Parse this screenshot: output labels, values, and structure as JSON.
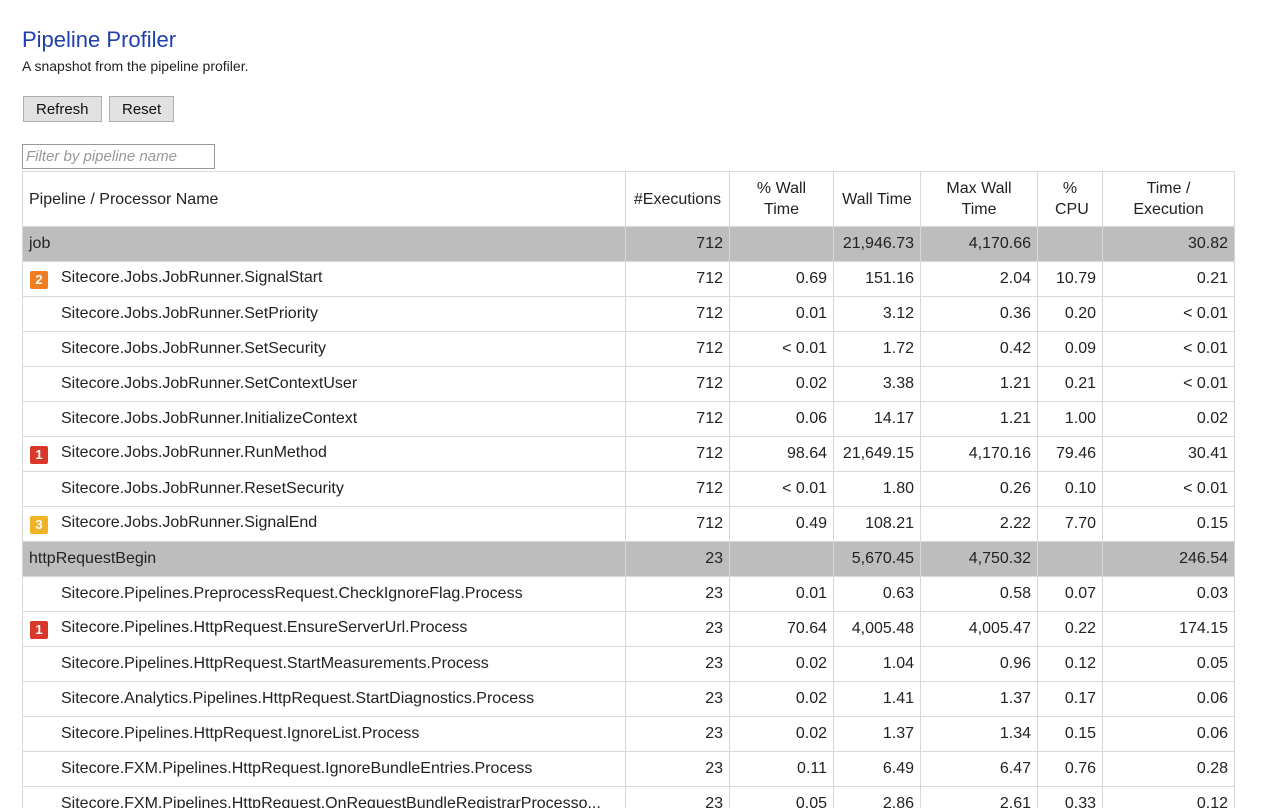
{
  "header": {
    "title": "Pipeline Profiler",
    "subtitle": "A snapshot from the pipeline profiler."
  },
  "toolbar": {
    "buttons": [
      "Refresh",
      "Reset"
    ]
  },
  "filter": {
    "placeholder": "Filter by pipeline name"
  },
  "table": {
    "columns": [
      "Pipeline / Processor Name",
      "#Executions",
      "% Wall Time",
      "Wall Time",
      "Max Wall Time",
      "% CPU",
      "Time / Execution"
    ],
    "rows": [
      {
        "group": true,
        "name": "job",
        "executions": "712",
        "wall_time": "21,946.73",
        "max_wall": "4,170.66",
        "time_per_exec": "30.82"
      },
      {
        "badge": "2",
        "name": "Sitecore.Jobs.JobRunner.SignalStart",
        "executions": "712",
        "pct_wall": "0.69",
        "wall_time": "151.16",
        "max_wall": "2.04",
        "pct_cpu": "10.79",
        "time_per_exec": "0.21"
      },
      {
        "name": "Sitecore.Jobs.JobRunner.SetPriority",
        "executions": "712",
        "pct_wall": "0.01",
        "wall_time": "3.12",
        "max_wall": "0.36",
        "pct_cpu": "0.20",
        "time_per_exec": "< 0.01"
      },
      {
        "name": "Sitecore.Jobs.JobRunner.SetSecurity",
        "executions": "712",
        "pct_wall": "< 0.01",
        "wall_time": "1.72",
        "max_wall": "0.42",
        "pct_cpu": "0.09",
        "time_per_exec": "< 0.01"
      },
      {
        "name": "Sitecore.Jobs.JobRunner.SetContextUser",
        "executions": "712",
        "pct_wall": "0.02",
        "wall_time": "3.38",
        "max_wall": "1.21",
        "pct_cpu": "0.21",
        "time_per_exec": "< 0.01"
      },
      {
        "name": "Sitecore.Jobs.JobRunner.InitializeContext",
        "executions": "712",
        "pct_wall": "0.06",
        "wall_time": "14.17",
        "max_wall": "1.21",
        "pct_cpu": "1.00",
        "time_per_exec": "0.02"
      },
      {
        "badge": "1",
        "name": "Sitecore.Jobs.JobRunner.RunMethod",
        "executions": "712",
        "pct_wall": "98.64",
        "wall_time": "21,649.15",
        "max_wall": "4,170.16",
        "pct_cpu": "79.46",
        "time_per_exec": "30.41"
      },
      {
        "name": "Sitecore.Jobs.JobRunner.ResetSecurity",
        "executions": "712",
        "pct_wall": "< 0.01",
        "wall_time": "1.80",
        "max_wall": "0.26",
        "pct_cpu": "0.10",
        "time_per_exec": "< 0.01"
      },
      {
        "badge": "3",
        "name": "Sitecore.Jobs.JobRunner.SignalEnd",
        "executions": "712",
        "pct_wall": "0.49",
        "wall_time": "108.21",
        "max_wall": "2.22",
        "pct_cpu": "7.70",
        "time_per_exec": "0.15"
      },
      {
        "group": true,
        "name": "httpRequestBegin",
        "executions": "23",
        "wall_time": "5,670.45",
        "max_wall": "4,750.32",
        "time_per_exec": "246.54"
      },
      {
        "name": "Sitecore.Pipelines.PreprocessRequest.CheckIgnoreFlag.Process",
        "executions": "23",
        "pct_wall": "0.01",
        "wall_time": "0.63",
        "max_wall": "0.58",
        "pct_cpu": "0.07",
        "time_per_exec": "0.03"
      },
      {
        "badge": "1",
        "name": "Sitecore.Pipelines.HttpRequest.EnsureServerUrl.Process",
        "executions": "23",
        "pct_wall": "70.64",
        "wall_time": "4,005.48",
        "max_wall": "4,005.47",
        "pct_cpu": "0.22",
        "time_per_exec": "174.15"
      },
      {
        "name": "Sitecore.Pipelines.HttpRequest.StartMeasurements.Process",
        "executions": "23",
        "pct_wall": "0.02",
        "wall_time": "1.04",
        "max_wall": "0.96",
        "pct_cpu": "0.12",
        "time_per_exec": "0.05"
      },
      {
        "name": "Sitecore.Analytics.Pipelines.HttpRequest.StartDiagnostics.Process",
        "executions": "23",
        "pct_wall": "0.02",
        "wall_time": "1.41",
        "max_wall": "1.37",
        "pct_cpu": "0.17",
        "time_per_exec": "0.06"
      },
      {
        "name": "Sitecore.Pipelines.HttpRequest.IgnoreList.Process",
        "executions": "23",
        "pct_wall": "0.02",
        "wall_time": "1.37",
        "max_wall": "1.34",
        "pct_cpu": "0.15",
        "time_per_exec": "0.06"
      },
      {
        "name": "Sitecore.FXM.Pipelines.HttpRequest.IgnoreBundleEntries.Process",
        "executions": "23",
        "pct_wall": "0.11",
        "wall_time": "6.49",
        "max_wall": "6.47",
        "pct_cpu": "0.76",
        "time_per_exec": "0.28"
      },
      {
        "name": "Sitecore.FXM.Pipelines.HttpRequest.OnRequestBundleRegistrarProcesso...",
        "executions": "23",
        "pct_wall": "0.05",
        "wall_time": "2.86",
        "max_wall": "2.61",
        "pct_cpu": "0.33",
        "time_per_exec": "0.12"
      }
    ]
  }
}
